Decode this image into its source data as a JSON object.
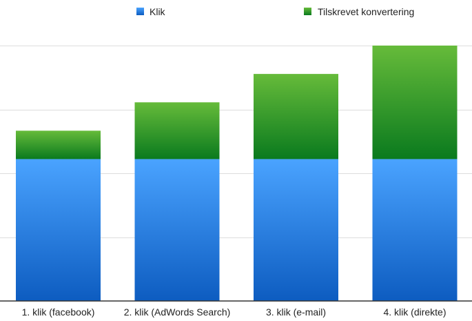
{
  "chart_data": {
    "type": "bar",
    "stacked": true,
    "categories": [
      "1. klik (facebook)",
      "2. klik (AdWords Search)",
      "3. klik (e-mail)",
      "4. klik (direkte)"
    ],
    "series": [
      {
        "name": "Klik",
        "values": [
          1,
          1,
          1,
          1
        ],
        "color": "#2f86e6"
      },
      {
        "name": "Tilskrevet konvertering",
        "values": [
          0.2,
          0.4,
          0.6,
          0.8
        ],
        "color": "#2e9a2e"
      }
    ],
    "ylim": [
      0,
      1.8
    ],
    "grid": true,
    "legend_position": "top"
  }
}
